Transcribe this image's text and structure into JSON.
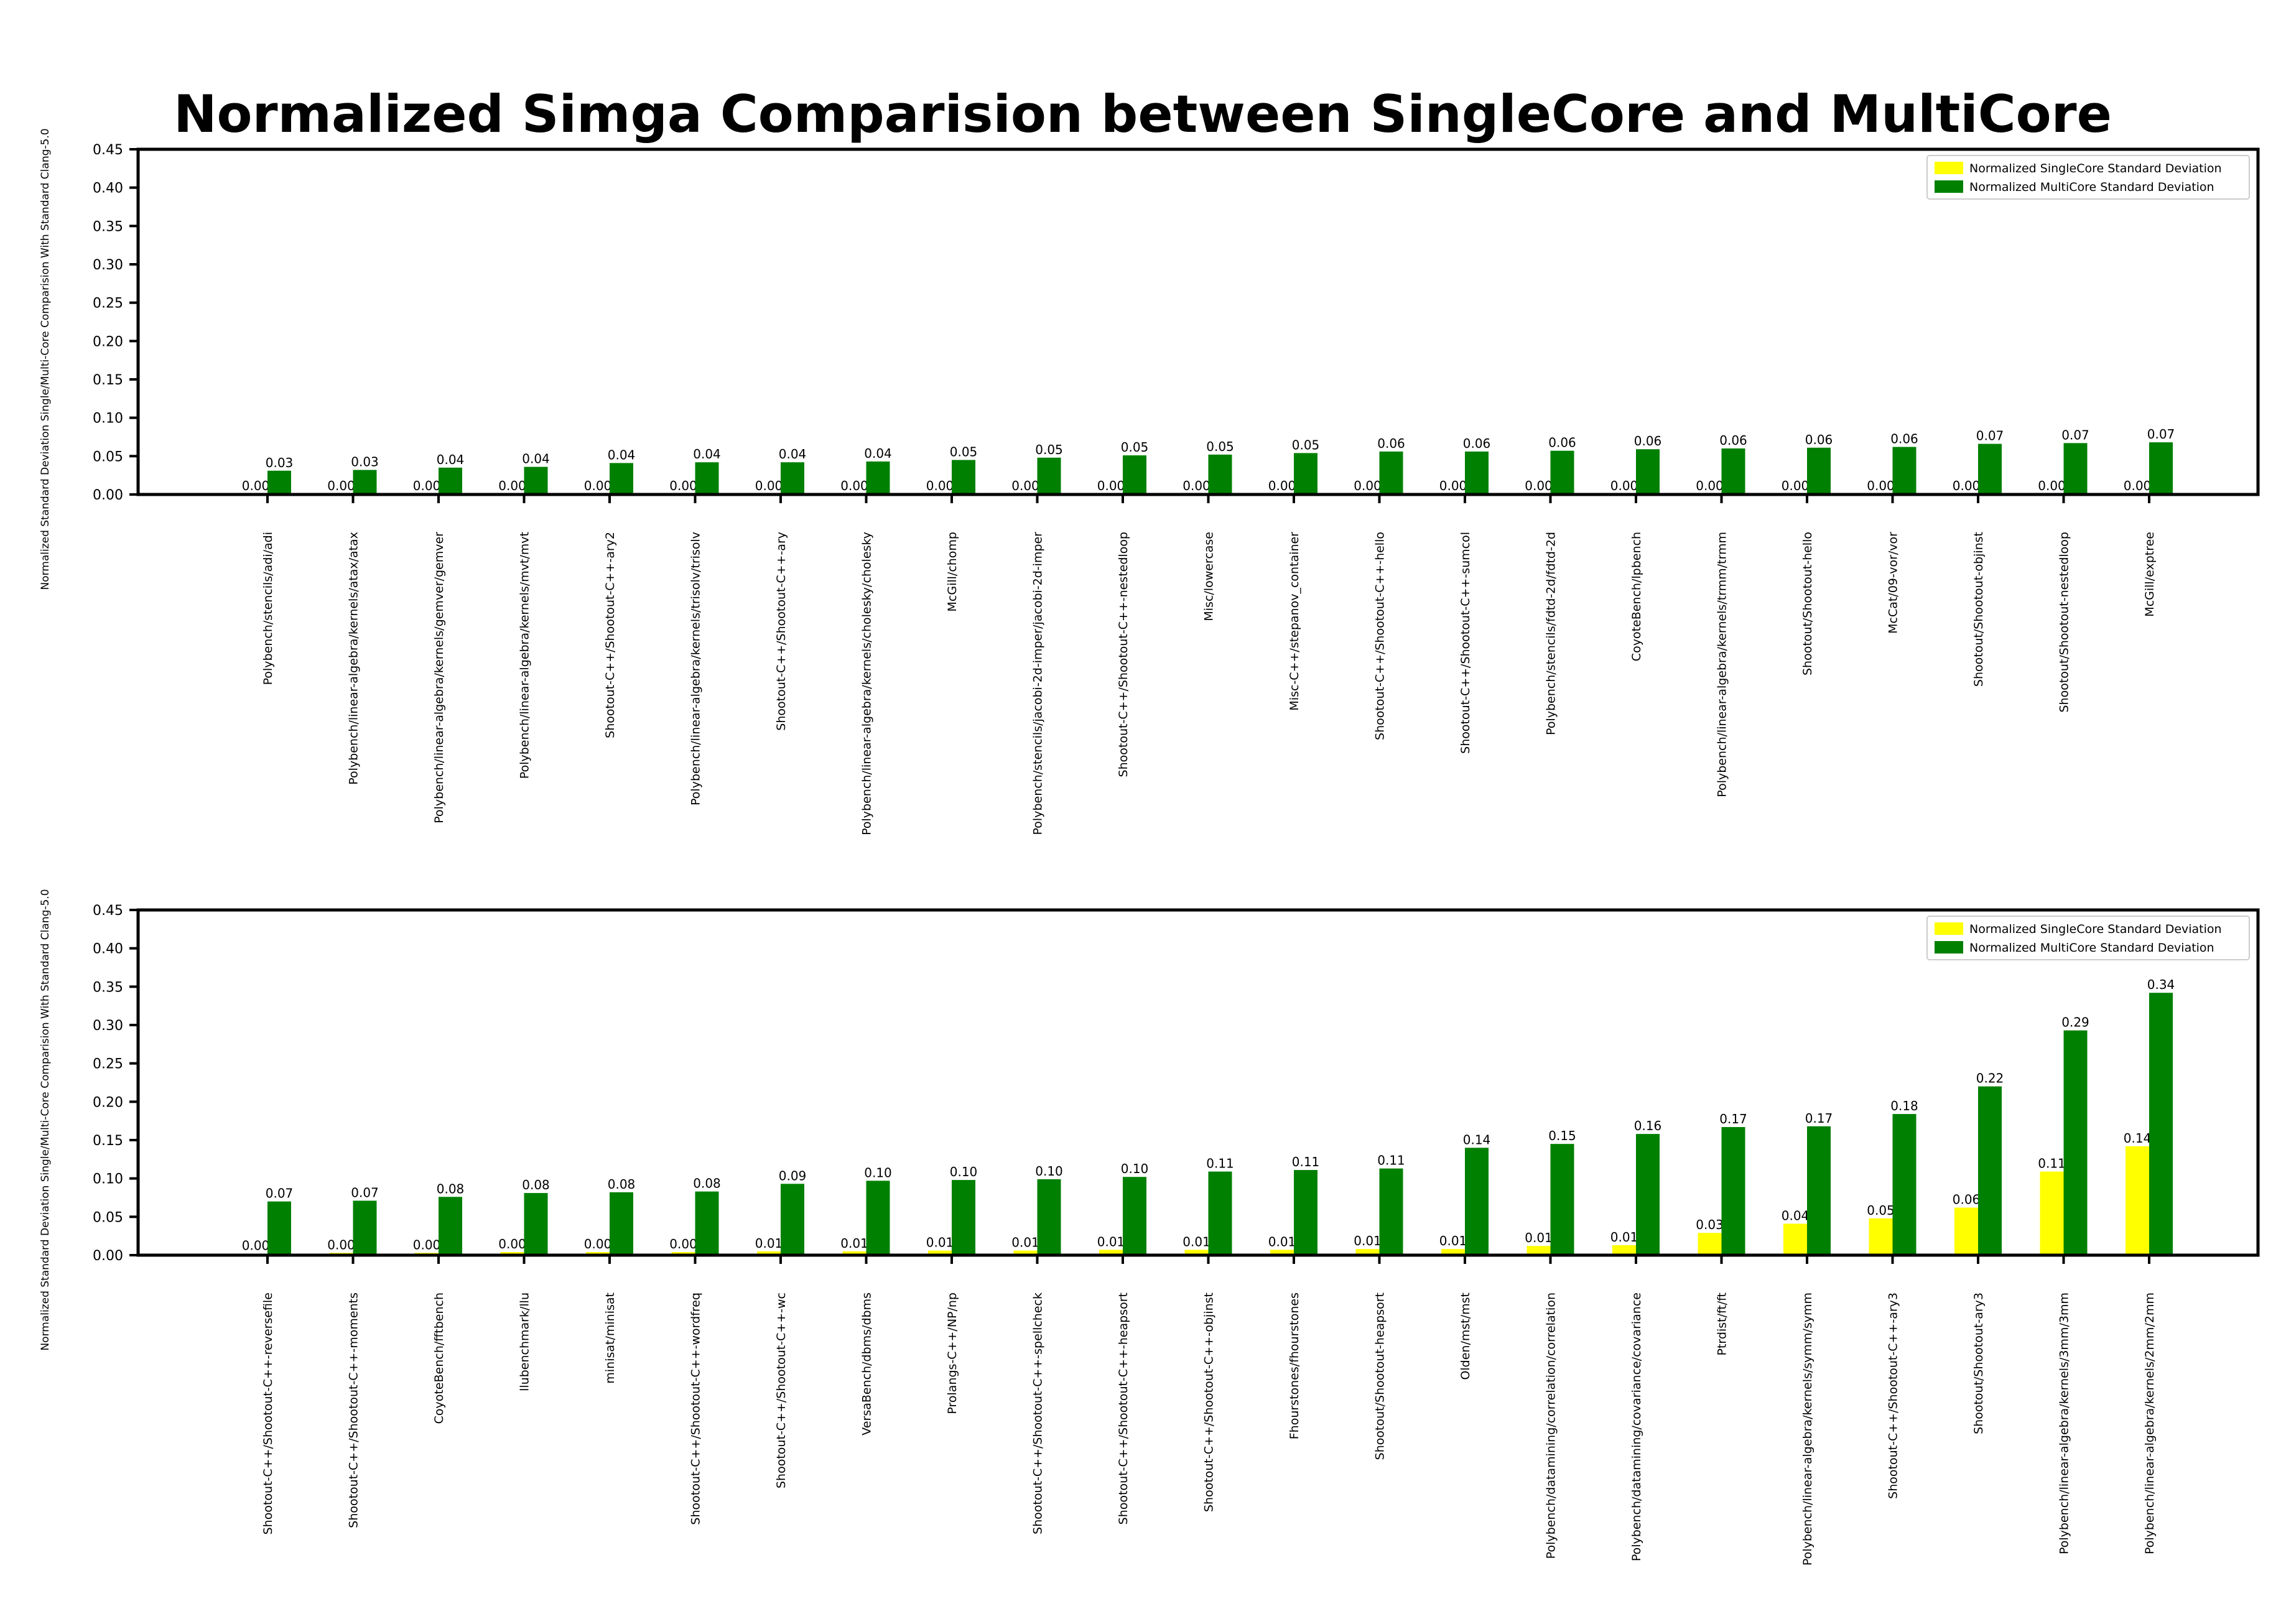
{
  "title": "Normalized Simga Comparision between SingleCore and MultiCore",
  "colors": {
    "single": "#ffff00",
    "multi": "#008000"
  },
  "chart_data": [
    {
      "type": "bar",
      "title": "",
      "ylabel": "Normalized Standard Deviation Single/Multi-Core Comparision With Standard Clang-5.0",
      "xlabel": "",
      "ylim": [
        0,
        0.45
      ],
      "yticks": [
        "0.00",
        "0.05",
        "0.10",
        "0.15",
        "0.20",
        "0.25",
        "0.30",
        "0.35",
        "0.40",
        "0.45"
      ],
      "legend_position": "top-right",
      "categories": [
        "Polybench/stencils/adi/adi",
        "Polybench/linear-algebra/kernels/atax/atax",
        "Polybench/linear-algebra/kernels/gemver/gemver",
        "Polybench/linear-algebra/kernels/mvt/mvt",
        "Shootout-C++/Shootout-C++-ary2",
        "Polybench/linear-algebra/kernels/trisolv/trisolv",
        "Shootout-C++/Shootout-C++-ary",
        "Polybench/linear-algebra/kernels/cholesky/cholesky",
        "McGill/chomp",
        "Polybench/stencils/jacobi-2d-imper/jacobi-2d-imper",
        "Shootout-C++/Shootout-C++-nestedloop",
        "Misc/lowercase",
        "Misc-C++/stepanov_container",
        "Shootout-C++/Shootout-C++-hello",
        "Shootout-C++/Shootout-C++-sumcol",
        "Polybench/stencils/fdtd-2d/fdtd-2d",
        "CoyoteBench/lpbench",
        "Polybench/linear-algebra/kernels/trmm/trmm",
        "Shootout/Shootout-hello",
        "McCat/09-vor/vor",
        "Shootout/Shootout-objinst",
        "Shootout/Shootout-nestedloop",
        "McGill/exptree"
      ],
      "series": [
        {
          "name": "Normalized SingleCore Standard Deviation",
          "values": [
            0.001,
            0.001,
            0.001,
            0.001,
            0.001,
            0.001,
            0.001,
            0.001,
            0.001,
            0.001,
            0.001,
            0.001,
            0.001,
            0.001,
            0.001,
            0.001,
            0.001,
            0.001,
            0.001,
            0.001,
            0.001,
            0.001,
            0.001
          ],
          "labels": [
            "0.00",
            "0.00",
            "0.00",
            "0.00",
            "0.00",
            "0.00",
            "0.00",
            "0.00",
            "0.00",
            "0.00",
            "0.00",
            "0.00",
            "0.00",
            "0.00",
            "0.00",
            "0.00",
            "0.00",
            "0.00",
            "0.00",
            "0.00",
            "0.00",
            "0.00",
            "0.00"
          ]
        },
        {
          "name": "Normalized MultiCore Standard Deviation",
          "values": [
            0.031,
            0.032,
            0.035,
            0.036,
            0.041,
            0.042,
            0.042,
            0.043,
            0.045,
            0.048,
            0.051,
            0.052,
            0.054,
            0.056,
            0.056,
            0.057,
            0.059,
            0.06,
            0.061,
            0.062,
            0.066,
            0.067,
            0.068
          ],
          "labels": [
            "0.03",
            "0.03",
            "0.04",
            "0.04",
            "0.04",
            "0.04",
            "0.04",
            "0.04",
            "0.05",
            "0.05",
            "0.05",
            "0.05",
            "0.05",
            "0.06",
            "0.06",
            "0.06",
            "0.06",
            "0.06",
            "0.06",
            "0.06",
            "0.07",
            "0.07",
            "0.07"
          ]
        }
      ]
    },
    {
      "type": "bar",
      "title": "",
      "ylabel": "Normalized Standard Deviation Single/Multi-Core Comparision With Standard Clang-5.0",
      "xlabel": "",
      "ylim": [
        0,
        0.45
      ],
      "yticks": [
        "0.00",
        "0.05",
        "0.10",
        "0.15",
        "0.20",
        "0.25",
        "0.30",
        "0.35",
        "0.40",
        "0.45"
      ],
      "legend_position": "top-right",
      "categories": [
        "Shootout-C++/Shootout-C++-reversefile",
        "Shootout-C++/Shootout-C++-moments",
        "CoyoteBench/fftbench",
        "llubenchmark/llu",
        "minisat/minisat",
        "Shootout-C++/Shootout-C++-wordfreq",
        "Shootout-C++/Shootout-C++-wc",
        "VersaBench/dbms/dbms",
        "Prolangs-C++/NP/np",
        "Shootout-C++/Shootout-C++-spellcheck",
        "Shootout-C++/Shootout-C++-heapsort",
        "Shootout-C++/Shootout-C++-objinst",
        "Fhourstones/fhourstones",
        "Shootout/Shootout-heapsort",
        "Olden/mst/mst",
        "Polybench/datamining/correlation/correlation",
        "Polybench/datamining/covariance/covariance",
        "Ptrdist/ft/ft",
        "Polybench/linear-algebra/kernels/symm/symm",
        "Shootout-C++/Shootout-C++-ary3",
        "Shootout/Shootout-ary3",
        "Polybench/linear-algebra/kernels/3mm/3mm",
        "Polybench/linear-algebra/kernels/2mm/2mm"
      ],
      "series": [
        {
          "name": "Normalized SingleCore Standard Deviation",
          "values": [
            0.002,
            0.003,
            0.003,
            0.004,
            0.004,
            0.004,
            0.005,
            0.005,
            0.006,
            0.006,
            0.007,
            0.007,
            0.007,
            0.008,
            0.008,
            0.012,
            0.013,
            0.029,
            0.041,
            0.048,
            0.062,
            0.109,
            0.142
          ],
          "labels": [
            "0.00",
            "0.00",
            "0.00",
            "0.00",
            "0.00",
            "0.00",
            "0.01",
            "0.01",
            "0.01",
            "0.01",
            "0.01",
            "0.01",
            "0.01",
            "0.01",
            "0.01",
            "0.01",
            "0.01",
            "0.03",
            "0.04",
            "0.05",
            "0.06",
            "0.11",
            "0.14"
          ]
        },
        {
          "name": "Normalized MultiCore Standard Deviation",
          "values": [
            0.07,
            0.071,
            0.076,
            0.081,
            0.082,
            0.083,
            0.093,
            0.097,
            0.098,
            0.099,
            0.102,
            0.109,
            0.111,
            0.113,
            0.14,
            0.145,
            0.158,
            0.167,
            0.168,
            0.184,
            0.22,
            0.293,
            0.342
          ],
          "labels": [
            "0.07",
            "0.07",
            "0.08",
            "0.08",
            "0.08",
            "0.08",
            "0.09",
            "0.10",
            "0.10",
            "0.10",
            "0.10",
            "0.11",
            "0.11",
            "0.11",
            "0.14",
            "0.15",
            "0.16",
            "0.17",
            "0.17",
            "0.18",
            "0.22",
            "0.29",
            "0.34"
          ]
        }
      ]
    }
  ]
}
